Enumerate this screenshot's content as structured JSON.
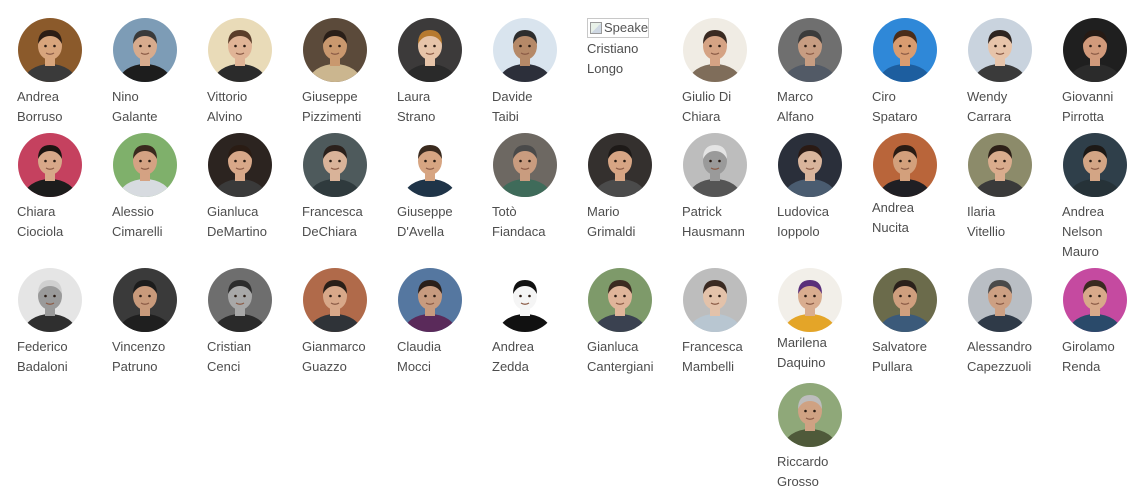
{
  "speakers": [
    {
      "first": "Andrea",
      "last": "Borruso",
      "bg": "#8b5a2b",
      "skin": "#d8a57c",
      "hair": "#2c1d14",
      "shirt": "#3a3a3a"
    },
    {
      "first": "Nino",
      "last": "Galante",
      "bg": "#7d9cb6",
      "skin": "#d7ab8d",
      "hair": "#3a3a3a",
      "shirt": "#1d1d1d"
    },
    {
      "first": "Vittorio",
      "last": "Alvino",
      "bg": "#e9dbb8",
      "skin": "#e0b496",
      "hair": "#5a3d2a",
      "shirt": "#2b2b2b"
    },
    {
      "first": "Giuseppe",
      "last": "Pizzimenti",
      "bg": "#5b4a3a",
      "skin": "#c9986e",
      "hair": "#2a1f18",
      "shirt": "#cbb68f"
    },
    {
      "first": "Laura",
      "last": "Strano",
      "bg": "#3c3a3a",
      "skin": "#e6c4a9",
      "hair": "#b77a2f",
      "shirt": "#2a2a2a"
    },
    {
      "first": "Davide",
      "last": "Taibi",
      "bg": "#d9e4ee",
      "skin": "#b58968",
      "hair": "#2d2d2d",
      "shirt": "#2c2f3a"
    },
    {
      "first": "Cristiano",
      "last": "Longo",
      "broken": true,
      "alt": "Speaker"
    },
    {
      "first": "Giulio Di",
      "last": "Chiara",
      "bg": "#f0ece4",
      "skin": "#d5a384",
      "hair": "#3a2a22",
      "shirt": "#7f6d5a"
    },
    {
      "first": "Marco",
      "last": "Alfano",
      "bg": "#6f6f6f",
      "skin": "#c79d82",
      "hair": "#3b3b3b",
      "shirt": "#525a66"
    },
    {
      "first": "Ciro",
      "last": "Spataro",
      "bg": "#2f88d8",
      "skin": "#d99c70",
      "hair": "#4a2d1a",
      "shirt": "#1d5e9f"
    },
    {
      "first": "Wendy",
      "last": "Carrara",
      "bg": "#c9d3de",
      "skin": "#e7c4aa",
      "hair": "#2e2420",
      "shirt": "#3a3a3a"
    },
    {
      "first": "Giovanni",
      "last": "Pirrotta",
      "bg": "#1f1f1f",
      "skin": "#d19a7b",
      "hair": "#261a14",
      "shirt": "#2b2b2b"
    },
    {
      "first": "Chiara",
      "last": "Ciociola",
      "bg": "#c5415f",
      "skin": "#d7a889",
      "hair": "#1d1512",
      "shirt": "#1c1c1c"
    },
    {
      "first": "Alessio",
      "last": "Cimarelli",
      "bg": "#7fb06b",
      "skin": "#d4a283",
      "hair": "#3a2a1e",
      "shirt": "#d7dbe0"
    },
    {
      "first": "Gianluca",
      "last": "DeMartino",
      "bg": "#2c2420",
      "skin": "#d8a889",
      "hair": "#2a1c14",
      "shirt": "#3a3a3a"
    },
    {
      "first": "Francesca",
      "last": "DeChiara",
      "bg": "#4e5a5c",
      "skin": "#d9b399",
      "hair": "#2b211c",
      "shirt": "#2f3a3d"
    },
    {
      "first": "Giuseppe",
      "last": "D'Avella",
      "bg": "#ffffff",
      "skin": "#d7a582",
      "hair": "#3a2a1e",
      "shirt": "#1f3448"
    },
    {
      "first": "Totò",
      "last": "Fiandaca",
      "bg": "#6d6862",
      "skin": "#c99c7f",
      "hair": "#4a4a4a",
      "shirt": "#3f6b5a"
    },
    {
      "first": "Mario",
      "last": "Grimaldi",
      "bg": "#34302e",
      "skin": "#d7a584",
      "hair": "#1e1a18",
      "shirt": "#4b4b4b"
    },
    {
      "first": "Patrick",
      "last": "Hausmann",
      "bg": "#bdbdbd",
      "skin": "#9a9a9a",
      "hair": "#e4e4e4",
      "shirt": "#555555"
    },
    {
      "first": "Ludovica",
      "last": "Ioppolo",
      "bg": "#2a2f3a",
      "skin": "#d9b59c",
      "hair": "#2a1a14",
      "shirt": "#4a5c70"
    },
    {
      "first": "Andrea",
      "last": "Nucita",
      "bg": "#b9653a",
      "skin": "#d3a07c",
      "hair": "#2a1c14",
      "shirt": "#1f1f24"
    },
    {
      "first": "Ilaria",
      "last": "Vitellio",
      "bg": "#8c8b6a",
      "skin": "#d9ac8d",
      "hair": "#2d2018",
      "shirt": "#3a3a3a"
    },
    {
      "first": "Andrea",
      "last": "Nelson",
      "third": "Mauro",
      "bg": "#2f3f4a",
      "skin": "#d3a585",
      "hair": "#1d1916",
      "shirt": "#263238"
    },
    {
      "first": "Federico",
      "last": "Badaloni",
      "bg": "#e5e5e5",
      "skin": "#9a9a9a",
      "hair": "#d0d0d0",
      "shirt": "#2f2f2f"
    },
    {
      "first": "Vincenzo",
      "last": "Patruno",
      "bg": "#3a3a3a",
      "skin": "#c89a7b",
      "hair": "#1c1c1c",
      "shirt": "#1f1f1f"
    },
    {
      "first": "Cristian",
      "last": "Cenci",
      "bg": "#6e6e6e",
      "skin": "#a8a8a8",
      "hair": "#2b2b2b",
      "shirt": "#2a2a2a"
    },
    {
      "first": "Gianmarco",
      "last": "Guazzo",
      "bg": "#b06a4a",
      "skin": "#d8a889",
      "hair": "#2a1f18",
      "shirt": "#2f3338"
    },
    {
      "first": "Claudia",
      "last": "Mocci",
      "bg": "#5577a0",
      "skin": "#c79b7f",
      "hair": "#2a1f1a",
      "shirt": "#5a2a5a"
    },
    {
      "first": "Andrea",
      "last": "Zedda",
      "bg": "#ffffff",
      "skin": "#f5f5f5",
      "hair": "#111111",
      "shirt": "#111111"
    },
    {
      "first": "Gianluca",
      "last": "Cantergiani",
      "bg": "#7e9a6a",
      "skin": "#e0b59a",
      "hair": "#3b2a20",
      "shirt": "#3a4150"
    },
    {
      "first": "Francesca",
      "last": "Mambelli",
      "bg": "#bdbdbd",
      "skin": "#e3c2aa",
      "hair": "#3a2a22",
      "shirt": "#b8c6d1"
    },
    {
      "first": "Marilena",
      "last": "Daquino",
      "bg": "#f2efe9",
      "skin": "#d9ad8f",
      "hair": "#5a2f7a",
      "shirt": "#e4a528"
    },
    {
      "first": "Salvatore",
      "last": "Pullara",
      "bg": "#6b6b4b",
      "skin": "#cf9f7e",
      "hair": "#2b211b",
      "shirt": "#3b5a7a"
    },
    {
      "first": "Alessandro",
      "last": "Capezzuoli",
      "bg": "#b9bec4",
      "skin": "#cda083",
      "hair": "#4a4a4a",
      "shirt": "#2f3a48"
    },
    {
      "first": "Girolamo",
      "last": "Renda",
      "bg": "#c54aa0",
      "skin": "#d8a98a",
      "hair": "#3a2a20",
      "shirt": "#2a4a6a"
    },
    {
      "first": "Riccardo",
      "last": "Grosso",
      "bg": "#8fa879",
      "skin": "#cfa283",
      "hair": "#bdbdbd",
      "shirt": "#4f5a3a"
    }
  ]
}
